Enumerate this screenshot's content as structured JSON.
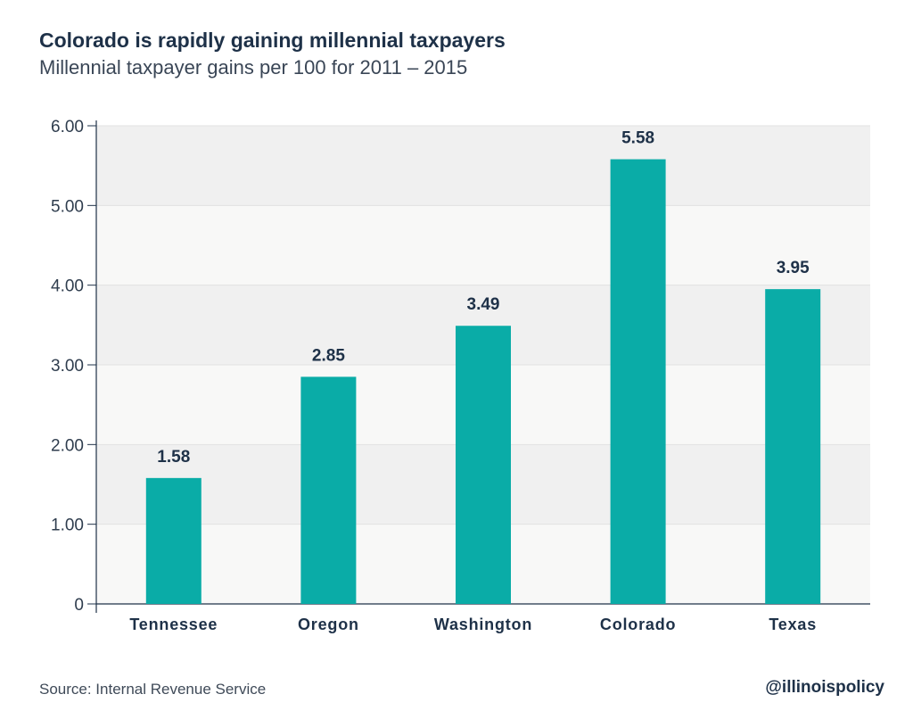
{
  "header": {
    "title": "Colorado is rapidly gaining millennial taxpayers",
    "subtitle": "Millennial taxpayer gains per 100 for 2011 – 2015"
  },
  "footer": {
    "source": "Source: Internal Revenue Service",
    "handle": "@illinoispolicy"
  },
  "colors": {
    "bar": "#0aaca7",
    "band_light": "#f8f8f7",
    "band_dark": "#f0f0f0",
    "text_dark": "#1e3148"
  },
  "chart_data": {
    "type": "bar",
    "title": "Colorado is rapidly gaining millennial taxpayers",
    "subtitle": "Millennial taxpayer gains per 100 for 2011 – 2015",
    "xlabel": "",
    "ylabel": "",
    "categories": [
      "Tennessee",
      "Oregon",
      "Washington",
      "Colorado",
      "Texas"
    ],
    "values": [
      1.58,
      2.85,
      3.49,
      5.58,
      3.95
    ],
    "data_labels": [
      "1.58",
      "2.85",
      "3.49",
      "5.58",
      "3.95"
    ],
    "ylim": [
      0,
      6
    ],
    "yticks": [
      0,
      1,
      2,
      3,
      4,
      5,
      6
    ],
    "ytick_labels": [
      "0",
      "1.00",
      "2.00",
      "3.00",
      "4.00",
      "5.00",
      "6.00"
    ],
    "grid": true,
    "legend": "none"
  }
}
